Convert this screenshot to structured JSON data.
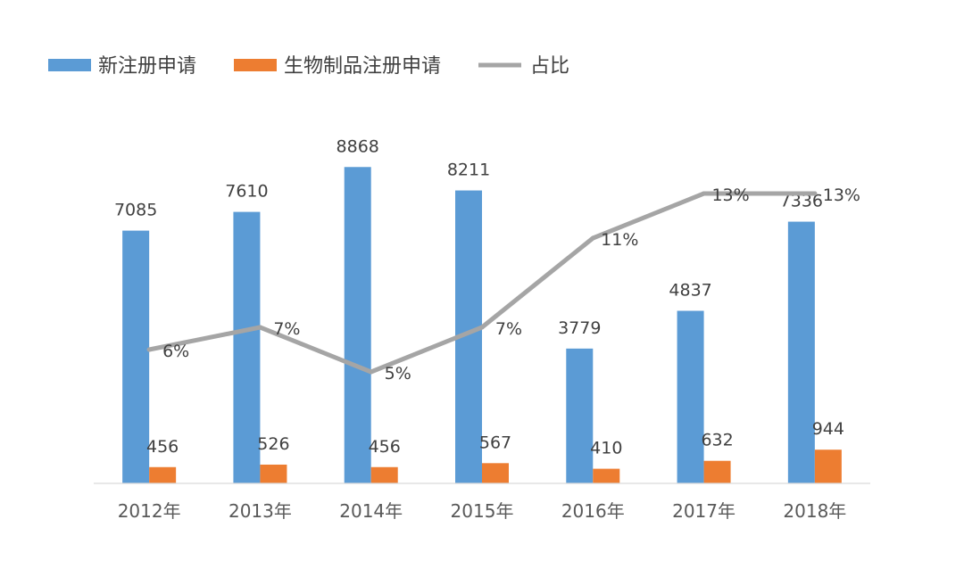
{
  "chart_data": {
    "type": "bar",
    "categories": [
      "2012年",
      "2013年",
      "2014年",
      "2015年",
      "2016年",
      "2017年",
      "2018年"
    ],
    "series": [
      {
        "name": "新注册申请",
        "type": "bar",
        "color": "#5b9bd5",
        "values": [
          7085,
          7610,
          8868,
          8211,
          3779,
          4837,
          7336
        ]
      },
      {
        "name": "生物制品注册申请",
        "type": "bar",
        "color": "#ed7d31",
        "values": [
          456,
          526,
          456,
          567,
          410,
          632,
          944
        ]
      },
      {
        "name": "占比",
        "type": "line",
        "color": "#a5a5a5",
        "values": [
          6,
          7,
          5,
          7,
          11,
          13,
          13
        ],
        "value_labels": [
          "6%",
          "7%",
          "5%",
          "7%",
          "11%",
          "13%",
          "13%"
        ]
      }
    ],
    "ylim": [
      0,
      10000
    ],
    "y2lim": [
      0,
      16
    ],
    "legend": "top-left",
    "grid": false
  }
}
